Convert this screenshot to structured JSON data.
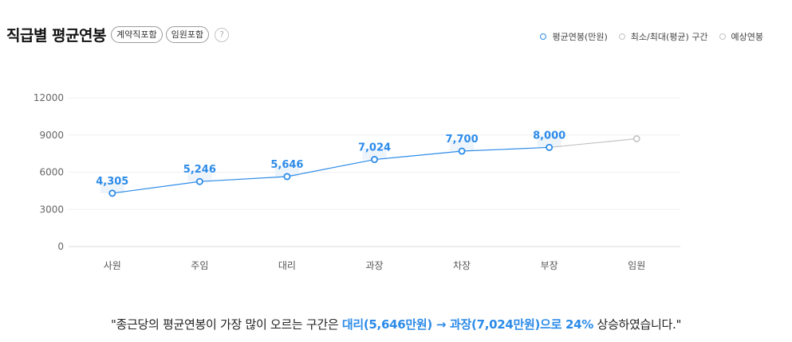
{
  "header": {
    "title": "직급별 평균연봉",
    "tags": [
      "계약직포함",
      "임원포함"
    ],
    "help_label": "?"
  },
  "legend": [
    {
      "label": "평균연봉(만원)",
      "color": "#2c8be8"
    },
    {
      "label": "최소/최대(평균) 구간",
      "color": "#c2c2c2"
    },
    {
      "label": "예상연봉",
      "color": "#c2c2c2"
    }
  ],
  "chart_data": {
    "type": "line",
    "categories": [
      "사원",
      "주임",
      "대리",
      "과장",
      "차장",
      "부장",
      "임원"
    ],
    "series": [
      {
        "name": "평균연봉(만원)",
        "values": [
          4305,
          5246,
          5646,
          7024,
          7700,
          8000,
          null
        ],
        "labels": [
          "4,305",
          "5,246",
          "5,646",
          "7,024",
          "7,700",
          "8,000",
          ""
        ],
        "color": "#2c8be8"
      },
      {
        "name": "예상연봉",
        "values": [
          null,
          null,
          null,
          null,
          null,
          8000,
          8700
        ],
        "color": "#c2c2c2"
      }
    ],
    "yticks": [
      0,
      3000,
      6000,
      9000,
      12000
    ],
    "ylim": [
      0,
      12000
    ],
    "grid": true,
    "legend_position": "top-right"
  },
  "summary": {
    "prefix": "\"종근당의 평균연봉이 가장 많이 오르는 구간은 ",
    "highlight": "대리(5,646만원) → 과장(7,024만원)으로 24%",
    "suffix": " 상승하였습니다.\""
  }
}
